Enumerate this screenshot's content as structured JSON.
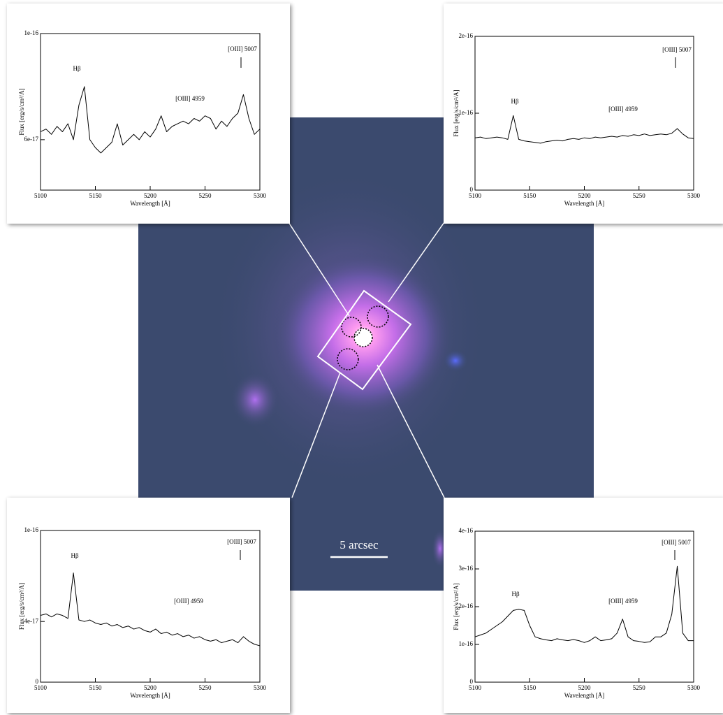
{
  "chart_data": [
    {
      "type": "line",
      "xlabel": "Wavelength [Å]",
      "ylabel": "Flux [erg/s/cm²/A]",
      "color": "#000000",
      "annotations": [
        "Hβ",
        "[OIII] 4959",
        "[OIII] 5007"
      ],
      "xlim": [
        5100,
        5300
      ],
      "xticks": [
        5100,
        5150,
        5200,
        5250,
        5300
      ],
      "ylim": [
        4.1e-17,
        1e-16
      ],
      "yticks": [
        6e-17,
        1e-16
      ],
      "x": [
        5100,
        5105,
        5110,
        5115,
        5120,
        5125,
        5130,
        5135,
        5140,
        5145,
        5150,
        5155,
        5160,
        5165,
        5170,
        5175,
        5180,
        5185,
        5190,
        5195,
        5200,
        5205,
        5210,
        5215,
        5220,
        5225,
        5230,
        5235,
        5240,
        5245,
        5250,
        5255,
        5260,
        5265,
        5270,
        5275,
        5280,
        5285,
        5290,
        5295,
        5300
      ],
      "values": [
        6.3e-17,
        6.4e-17,
        6.2e-17,
        6.5e-17,
        6.3e-17,
        6.6e-17,
        6e-17,
        7.3e-17,
        8e-17,
        6e-17,
        5.7e-17,
        5.5e-17,
        5.7e-17,
        5.9e-17,
        6.6e-17,
        5.8e-17,
        6e-17,
        6.2e-17,
        6e-17,
        6.3e-17,
        6.1e-17,
        6.4e-17,
        6.9e-17,
        6.3e-17,
        6.5e-17,
        6.6e-17,
        6.7e-17,
        6.6e-17,
        6.8e-17,
        6.7e-17,
        6.9e-17,
        6.8e-17,
        6.4e-17,
        6.7e-17,
        6.5e-17,
        6.8e-17,
        7e-17,
        7.7e-17,
        6.8e-17,
        6.2e-17,
        6.4e-17
      ]
    },
    {
      "type": "line",
      "xlabel": "Wavelength [Å]",
      "ylabel": "Flux [erg/s/cm²/A]",
      "color": "#000000",
      "annotations": [
        "Hβ",
        "[OIII] 4959",
        "[OIII] 5007"
      ],
      "xlim": [
        5100,
        5300
      ],
      "xticks": [
        5100,
        5150,
        5200,
        5250,
        5300
      ],
      "ylim": [
        0,
        2e-16
      ],
      "yticks": [
        0,
        1e-16,
        2e-16
      ],
      "x": [
        5100,
        5105,
        5110,
        5115,
        5120,
        5125,
        5130,
        5135,
        5140,
        5145,
        5150,
        5155,
        5160,
        5165,
        5170,
        5175,
        5180,
        5185,
        5190,
        5195,
        5200,
        5205,
        5210,
        5215,
        5220,
        5225,
        5230,
        5235,
        5240,
        5245,
        5250,
        5255,
        5260,
        5265,
        5270,
        5275,
        5280,
        5285,
        5290,
        5295,
        5300
      ],
      "values": [
        6.8e-17,
        6.9e-17,
        6.7e-17,
        6.8e-17,
        6.9e-17,
        6.8e-17,
        6.6e-17,
        9.7e-17,
        6.6e-17,
        6.4e-17,
        6.3e-17,
        6.2e-17,
        6.1e-17,
        6.3e-17,
        6.4e-17,
        6.5e-17,
        6.4e-17,
        6.6e-17,
        6.7e-17,
        6.6e-17,
        6.8e-17,
        6.7e-17,
        6.9e-17,
        6.8e-17,
        6.9e-17,
        7e-17,
        6.9e-17,
        7.1e-17,
        7e-17,
        7.2e-17,
        7.1e-17,
        7.3e-17,
        7.1e-17,
        7.2e-17,
        7.3e-17,
        7.2e-17,
        7.4e-17,
        8e-17,
        7.3e-17,
        6.8e-17,
        6.7e-17
      ]
    },
    {
      "type": "line",
      "xlabel": "Wavelength [Å]",
      "ylabel": "Flux [erg/s/cm²/A]",
      "color": "#000000",
      "annotations": [
        "Hβ",
        "[OIII] 4959",
        "[OIII] 5007"
      ],
      "xlim": [
        5100,
        5300
      ],
      "xticks": [
        5100,
        5150,
        5200,
        5250,
        5300
      ],
      "ylim": [
        0,
        1e-16
      ],
      "yticks": [
        0,
        4e-17,
        1e-16
      ],
      "x": [
        5100,
        5105,
        5110,
        5115,
        5120,
        5125,
        5130,
        5135,
        5140,
        5145,
        5150,
        5155,
        5160,
        5165,
        5170,
        5175,
        5180,
        5185,
        5190,
        5195,
        5200,
        5205,
        5210,
        5215,
        5220,
        5225,
        5230,
        5235,
        5240,
        5245,
        5250,
        5255,
        5260,
        5265,
        5270,
        5275,
        5280,
        5285,
        5290,
        5295,
        5300
      ],
      "values": [
        4.4e-17,
        4.5e-17,
        4.3e-17,
        4.5e-17,
        4.4e-17,
        4.2e-17,
        7.2e-17,
        4.1e-17,
        4e-17,
        4.1e-17,
        3.9e-17,
        3.8e-17,
        3.9e-17,
        3.7e-17,
        3.8e-17,
        3.6e-17,
        3.7e-17,
        3.5e-17,
        3.6e-17,
        3.4e-17,
        3.3e-17,
        3.5e-17,
        3.2e-17,
        3.3e-17,
        3.1e-17,
        3.2e-17,
        3e-17,
        3.1e-17,
        2.9e-17,
        3e-17,
        2.8e-17,
        2.7e-17,
        2.8e-17,
        2.6e-17,
        2.7e-17,
        2.8e-17,
        2.6e-17,
        3e-17,
        2.7e-17,
        2.5e-17,
        2.4e-17
      ]
    },
    {
      "type": "line",
      "xlabel": "Wavelength [Å]",
      "ylabel": "Flux [erg/s/cm²/A]",
      "color": "#000000",
      "annotations": [
        "Hβ",
        "[OIII] 4959",
        "[OIII] 5007"
      ],
      "xlim": [
        5100,
        5300
      ],
      "xticks": [
        5100,
        5150,
        5200,
        5250,
        5300
      ],
      "ylim": [
        0,
        4e-16
      ],
      "yticks": [
        0,
        1e-16,
        2e-16,
        3e-16,
        4e-16
      ],
      "x": [
        5100,
        5105,
        5110,
        5115,
        5120,
        5125,
        5130,
        5135,
        5140,
        5145,
        5150,
        5155,
        5160,
        5165,
        5170,
        5175,
        5180,
        5185,
        5190,
        5195,
        5200,
        5205,
        5210,
        5215,
        5220,
        5225,
        5230,
        5235,
        5240,
        5245,
        5250,
        5255,
        5260,
        5265,
        5270,
        5275,
        5280,
        5285,
        5290,
        5295,
        5300
      ],
      "values": [
        1.2e-16,
        1.25e-16,
        1.3e-16,
        1.4e-16,
        1.5e-16,
        1.6e-16,
        1.75e-16,
        1.9e-16,
        1.93e-16,
        1.9e-16,
        1.5e-16,
        1.2e-16,
        1.15e-16,
        1.12e-16,
        1.1e-16,
        1.15e-16,
        1.12e-16,
        1.1e-16,
        1.13e-16,
        1.1e-16,
        1.05e-16,
        1.1e-16,
        1.2e-16,
        1.1e-16,
        1.12e-16,
        1.15e-16,
        1.3e-16,
        1.67e-16,
        1.2e-16,
        1.1e-16,
        1.08e-16,
        1.05e-16,
        1.07e-16,
        1.2e-16,
        1.2e-16,
        1.3e-16,
        1.8e-16,
        3.07e-16,
        1.3e-16,
        1.1e-16,
        1.1e-16
      ]
    }
  ],
  "image": {
    "scale_label": "5 arcsec"
  }
}
